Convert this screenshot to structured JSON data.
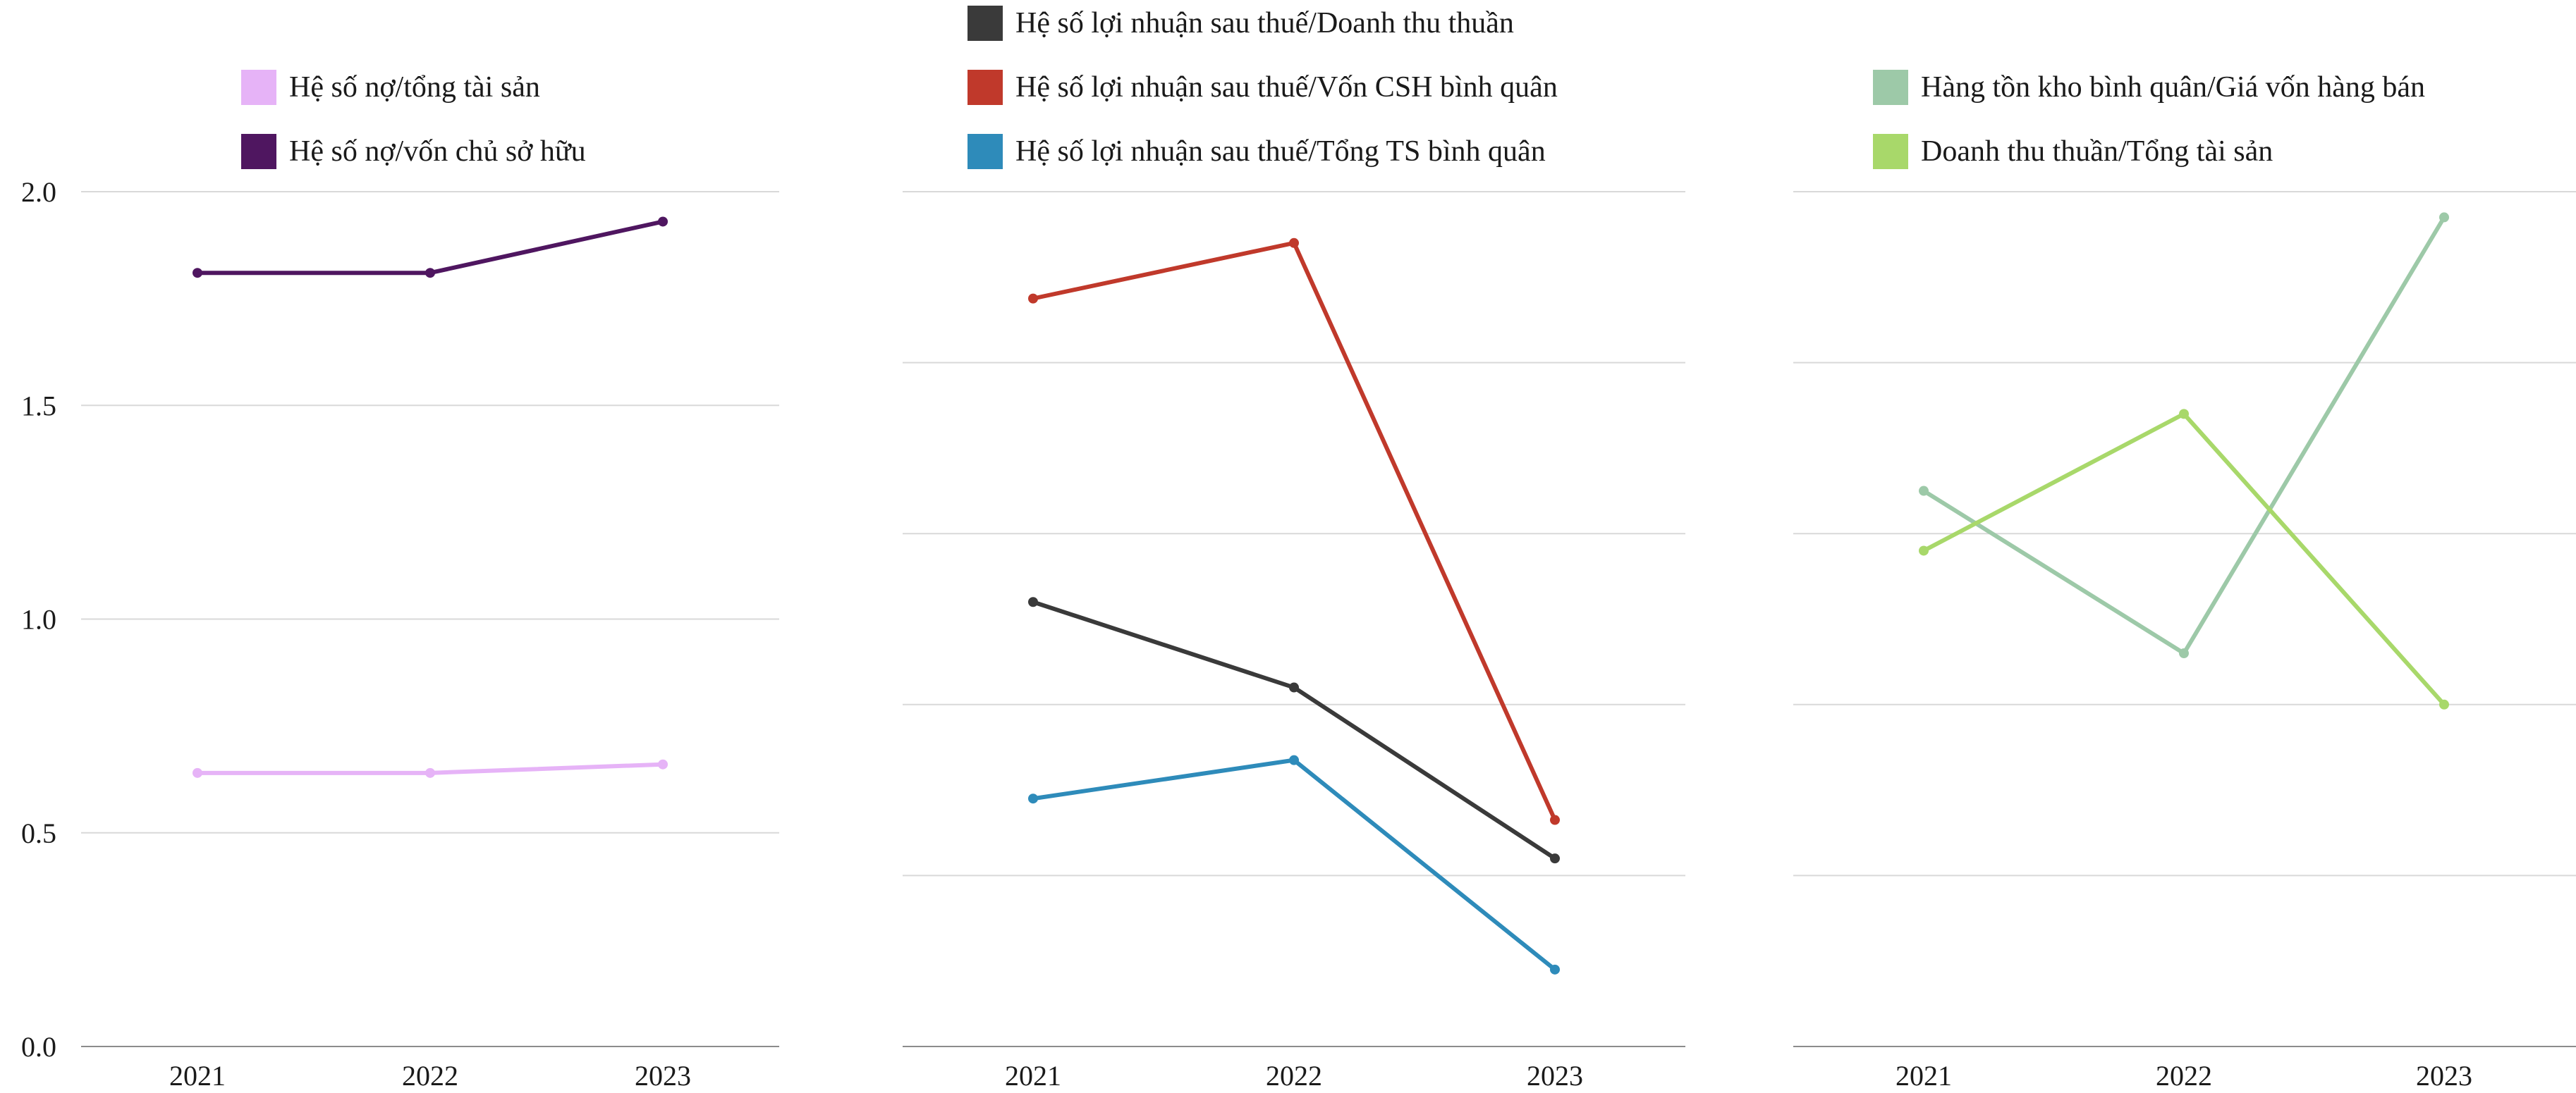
{
  "chart_data": [
    {
      "type": "line",
      "categories": [
        "2021",
        "2022",
        "2023"
      ],
      "ylim": [
        0,
        2.0
      ],
      "yticks": [
        "0.0",
        "0.5",
        "1.0",
        "1.5",
        "2.0"
      ],
      "grid": true,
      "legend_position": "top",
      "series": [
        {
          "name": "Hệ số nợ/tổng tài sản",
          "color": "#e6b3f7",
          "values": [
            0.64,
            0.64,
            0.66
          ]
        },
        {
          "name": "Hệ số nợ/vốn chủ sở hữu",
          "color": "#4f1660",
          "values": [
            1.81,
            1.81,
            1.93
          ]
        }
      ]
    },
    {
      "type": "line",
      "categories": [
        "2021",
        "2022",
        "2023"
      ],
      "ylim": [
        0,
        2.0
      ],
      "grid": true,
      "legend_position": "top",
      "series": [
        {
          "name": "Hệ số lợi nhuận sau thuế/Doanh thu thuần",
          "color": "#3a3a3a",
          "values": [
            1.04,
            0.84,
            0.44
          ]
        },
        {
          "name": "Hệ số lợi nhuận sau thuế/Vốn CSH bình quân",
          "color": "#c0392b",
          "values": [
            1.75,
            1.88,
            0.53
          ]
        },
        {
          "name": "Hệ số lợi nhuận sau thuế/Tổng TS bình quân",
          "color": "#2e8bba",
          "values": [
            0.58,
            0.67,
            0.18
          ]
        }
      ]
    },
    {
      "type": "line",
      "categories": [
        "2021",
        "2022",
        "2023"
      ],
      "ylim": [
        0,
        2.0
      ],
      "grid": true,
      "legend_position": "top",
      "series": [
        {
          "name": "Hàng tồn kho bình quân/Giá vốn hàng bán",
          "color": "#9dc9a8",
          "values": [
            1.3,
            0.92,
            1.94
          ]
        },
        {
          "name": "Doanh thu thuần/Tổng tài sản",
          "color": "#a8d86a",
          "values": [
            1.16,
            1.48,
            0.8
          ]
        }
      ]
    }
  ]
}
